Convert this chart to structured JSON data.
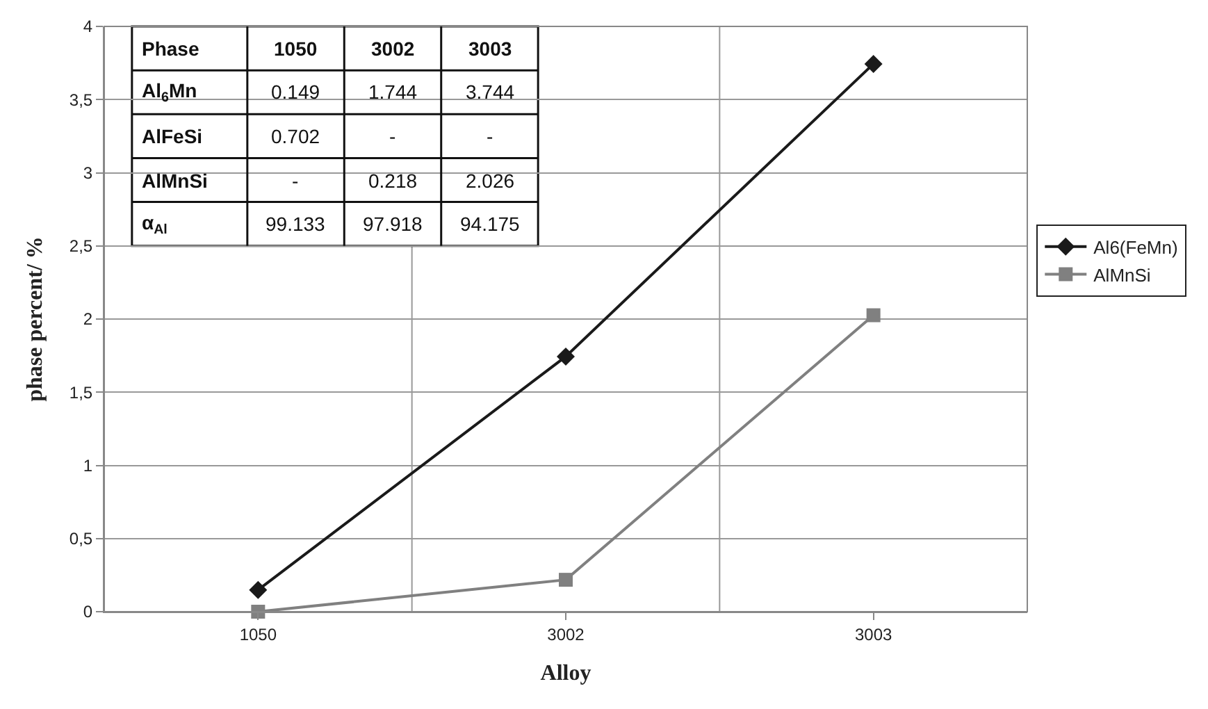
{
  "chart_data": {
    "type": "line",
    "xlabel": "Alloy",
    "ylabel": "phase percent/ %",
    "categories": [
      "1050",
      "3002",
      "3003"
    ],
    "series": [
      {
        "name": "Al6(FeMn)",
        "color": "#1a1a1a",
        "marker": "diamond",
        "values": [
          0.149,
          1.744,
          3.744
        ]
      },
      {
        "name": "AlMnSi",
        "color": "#808080",
        "marker": "square",
        "values": [
          0,
          0.218,
          2.026
        ]
      }
    ],
    "ylim": [
      0,
      4
    ],
    "yticks": [
      0,
      {
        "value": 0.5,
        "label": "0,5"
      },
      1,
      {
        "value": 1.5,
        "label": "1,5"
      },
      2,
      {
        "value": 2.5,
        "label": "2,5"
      },
      3,
      {
        "value": 3.5,
        "label": "3,5"
      },
      4
    ],
    "grid": true,
    "legend": "right",
    "line_style": "solid",
    "annotations": [
      "Phase",
      "1050",
      "3002",
      "3003",
      "Al$_{6}$Mn",
      "0.149",
      "1.744",
      "3.744",
      "AlFeSi",
      "0.702",
      "-",
      "-",
      "AlMnSi",
      "-",
      "0.218",
      "2.026",
      "α$_{Al}$",
      "99.133",
      "97.918",
      "94.175"
    ]
  }
}
